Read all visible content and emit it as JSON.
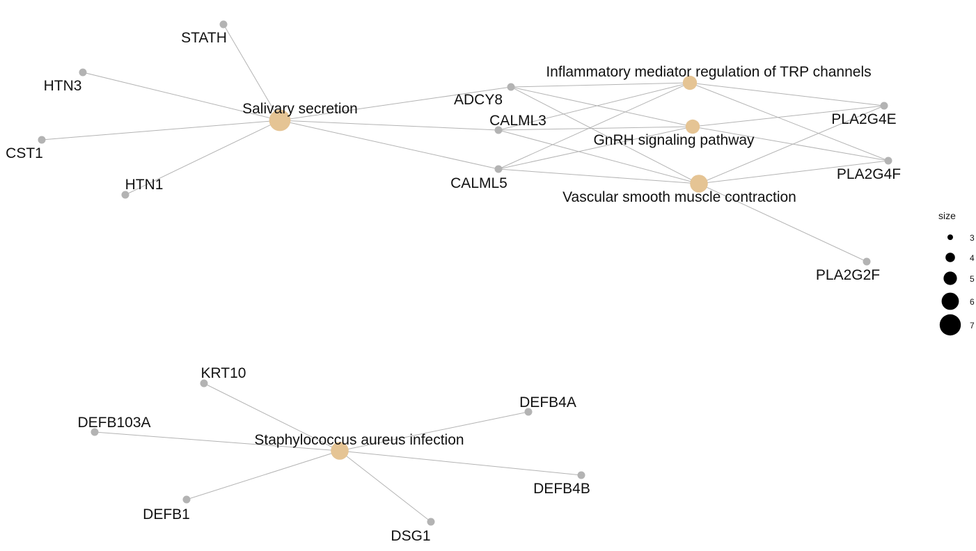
{
  "network": {
    "colors": {
      "pathway": "#E5C494",
      "gene": "#B3B3B3",
      "edge": "#B3B3B3",
      "legend_point": "#000000"
    },
    "pathways": [
      {
        "id": "salivary",
        "label": "Salivary secretion",
        "size": 7
      },
      {
        "id": "inflam",
        "label": "Inflammatory mediator regulation of TRP channels",
        "size": 5
      },
      {
        "id": "gnrh",
        "label": "GnRH signaling pathway",
        "size": 5
      },
      {
        "id": "vascular",
        "label": "Vascular smooth muscle contraction",
        "size": 6
      },
      {
        "id": "staph",
        "label": "Staphylococcus aureus infection",
        "size": 6
      }
    ],
    "genes": [
      {
        "id": "STATH",
        "label": "STATH"
      },
      {
        "id": "HTN3",
        "label": "HTN3"
      },
      {
        "id": "CST1",
        "label": "CST1"
      },
      {
        "id": "HTN1",
        "label": "HTN1"
      },
      {
        "id": "ADCY8",
        "label": "ADCY8"
      },
      {
        "id": "CALML3",
        "label": "CALML3"
      },
      {
        "id": "CALML5",
        "label": "CALML5"
      },
      {
        "id": "PLA2G4E",
        "label": "PLA2G4E"
      },
      {
        "id": "PLA2G4F",
        "label": "PLA2G4F"
      },
      {
        "id": "PLA2G2F",
        "label": "PLA2G2F"
      },
      {
        "id": "KRT10",
        "label": "KRT10"
      },
      {
        "id": "DEFB103A",
        "label": "DEFB103A"
      },
      {
        "id": "DEFB4A",
        "label": "DEFB4A"
      },
      {
        "id": "DEFB4B",
        "label": "DEFB4B"
      },
      {
        "id": "DEFB1",
        "label": "DEFB1"
      },
      {
        "id": "DSG1",
        "label": "DSG1"
      }
    ],
    "edges": [
      [
        "salivary",
        "STATH"
      ],
      [
        "salivary",
        "HTN3"
      ],
      [
        "salivary",
        "CST1"
      ],
      [
        "salivary",
        "HTN1"
      ],
      [
        "salivary",
        "ADCY8"
      ],
      [
        "salivary",
        "CALML3"
      ],
      [
        "salivary",
        "CALML5"
      ],
      [
        "inflam",
        "ADCY8"
      ],
      [
        "inflam",
        "CALML3"
      ],
      [
        "inflam",
        "CALML5"
      ],
      [
        "inflam",
        "PLA2G4E"
      ],
      [
        "inflam",
        "PLA2G4F"
      ],
      [
        "gnrh",
        "ADCY8"
      ],
      [
        "gnrh",
        "CALML3"
      ],
      [
        "gnrh",
        "CALML5"
      ],
      [
        "gnrh",
        "PLA2G4E"
      ],
      [
        "gnrh",
        "PLA2G4F"
      ],
      [
        "vascular",
        "ADCY8"
      ],
      [
        "vascular",
        "CALML3"
      ],
      [
        "vascular",
        "CALML5"
      ],
      [
        "vascular",
        "PLA2G4E"
      ],
      [
        "vascular",
        "PLA2G4F"
      ],
      [
        "vascular",
        "PLA2G2F"
      ],
      [
        "staph",
        "KRT10"
      ],
      [
        "staph",
        "DEFB103A"
      ],
      [
        "staph",
        "DEFB4A"
      ],
      [
        "staph",
        "DEFB4B"
      ],
      [
        "staph",
        "DEFB1"
      ],
      [
        "staph",
        "DSG1"
      ]
    ]
  },
  "legend": {
    "title": "size",
    "entries": [
      {
        "value": 3,
        "label": "3"
      },
      {
        "value": 4,
        "label": "4"
      },
      {
        "value": 5,
        "label": "5"
      },
      {
        "value": 6,
        "label": "6"
      },
      {
        "value": 7,
        "label": "7"
      }
    ]
  }
}
